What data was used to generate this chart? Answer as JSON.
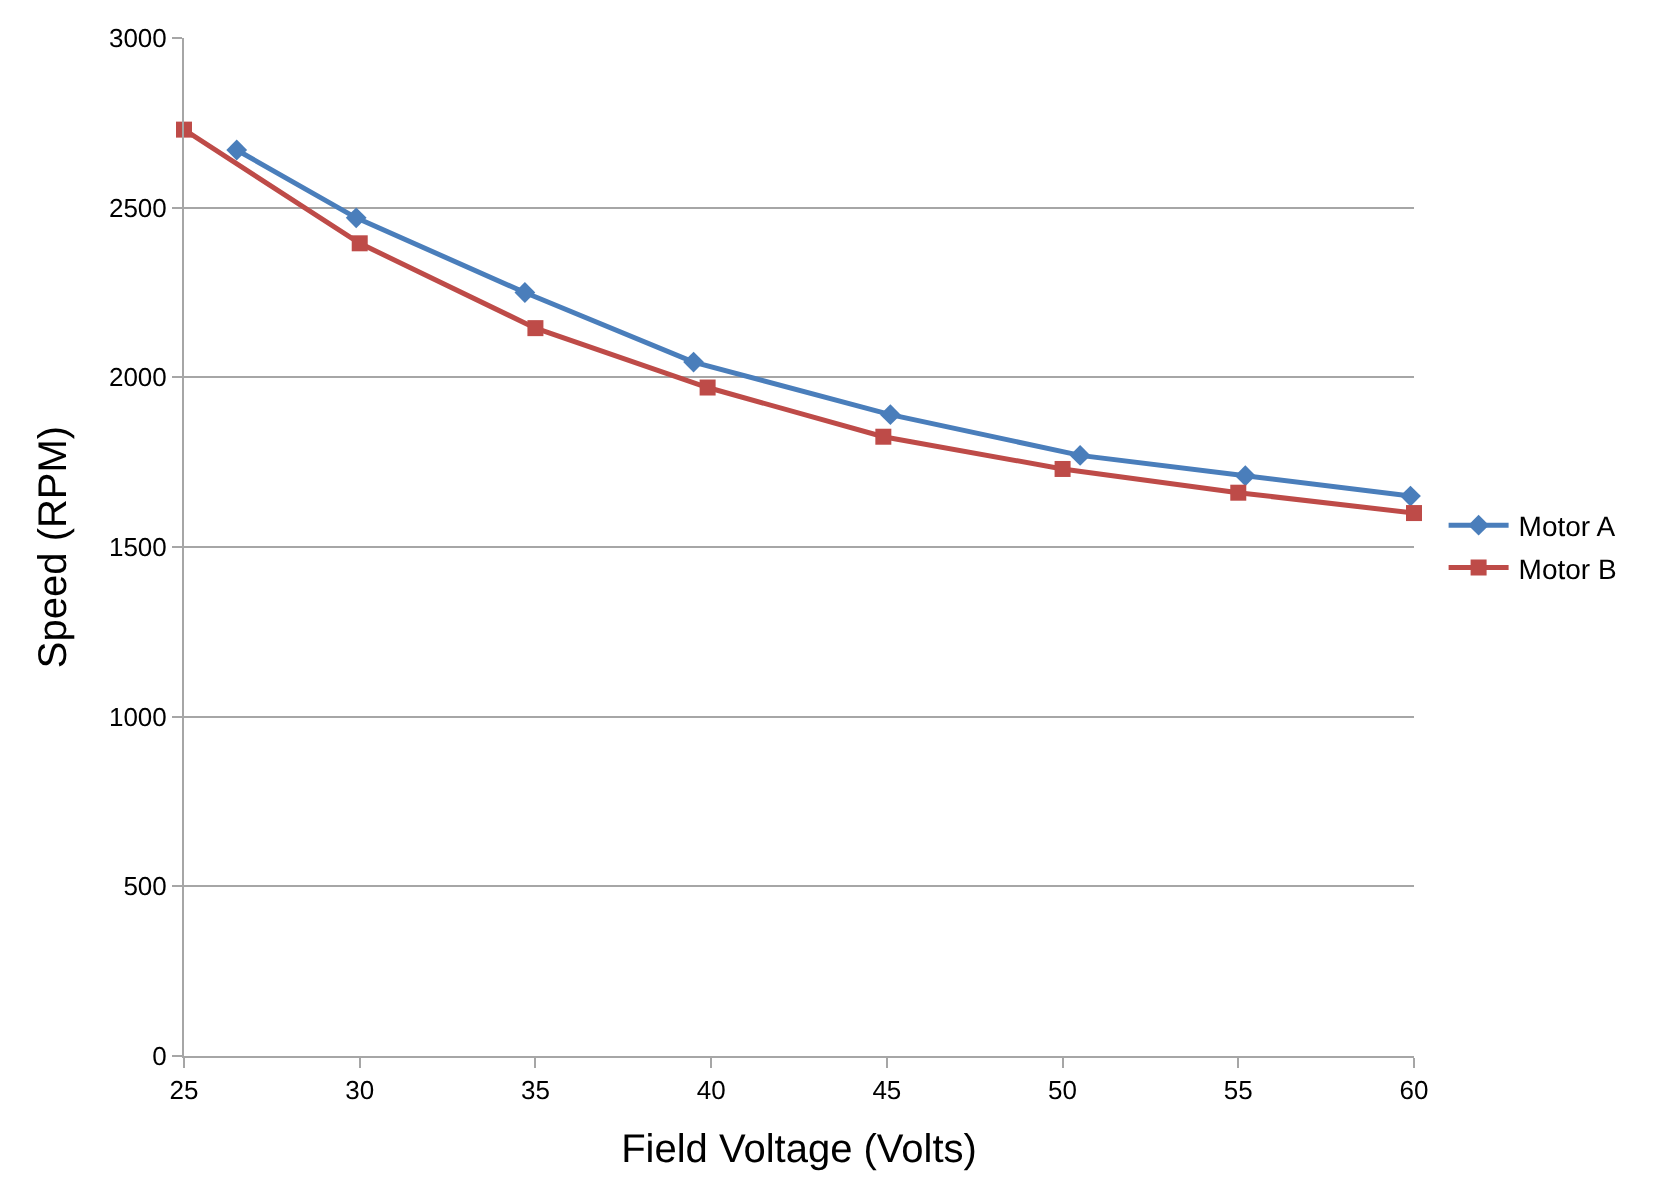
{
  "chart_data": {
    "type": "line",
    "xlabel": "Field Voltage (Volts)",
    "ylabel": "Speed (RPM)",
    "xlim": [
      25,
      60
    ],
    "xticks": [
      25,
      30,
      35,
      40,
      45,
      50,
      55,
      60
    ],
    "ylim": [
      0,
      3000
    ],
    "yticks": [
      0,
      500,
      1000,
      1500,
      2000,
      2500,
      3000
    ],
    "grid": "y",
    "legend": "right",
    "line_style": "solid",
    "series": [
      {
        "name": "Motor A",
        "color": "#4a7ebb",
        "marker": "diamond",
        "x": [
          26.5,
          29.9,
          34.7,
          39.5,
          45.1,
          50.5,
          55.2,
          59.9
        ],
        "values": [
          2670,
          2470,
          2250,
          2045,
          1890,
          1770,
          1710,
          1650
        ]
      },
      {
        "name": "Motor B",
        "color": "#be4b48",
        "marker": "square",
        "x": [
          25,
          30,
          35,
          39.9,
          44.9,
          50,
          55,
          60
        ],
        "values": [
          2730,
          2395,
          2145,
          1970,
          1825,
          1730,
          1660,
          1600
        ]
      }
    ]
  }
}
